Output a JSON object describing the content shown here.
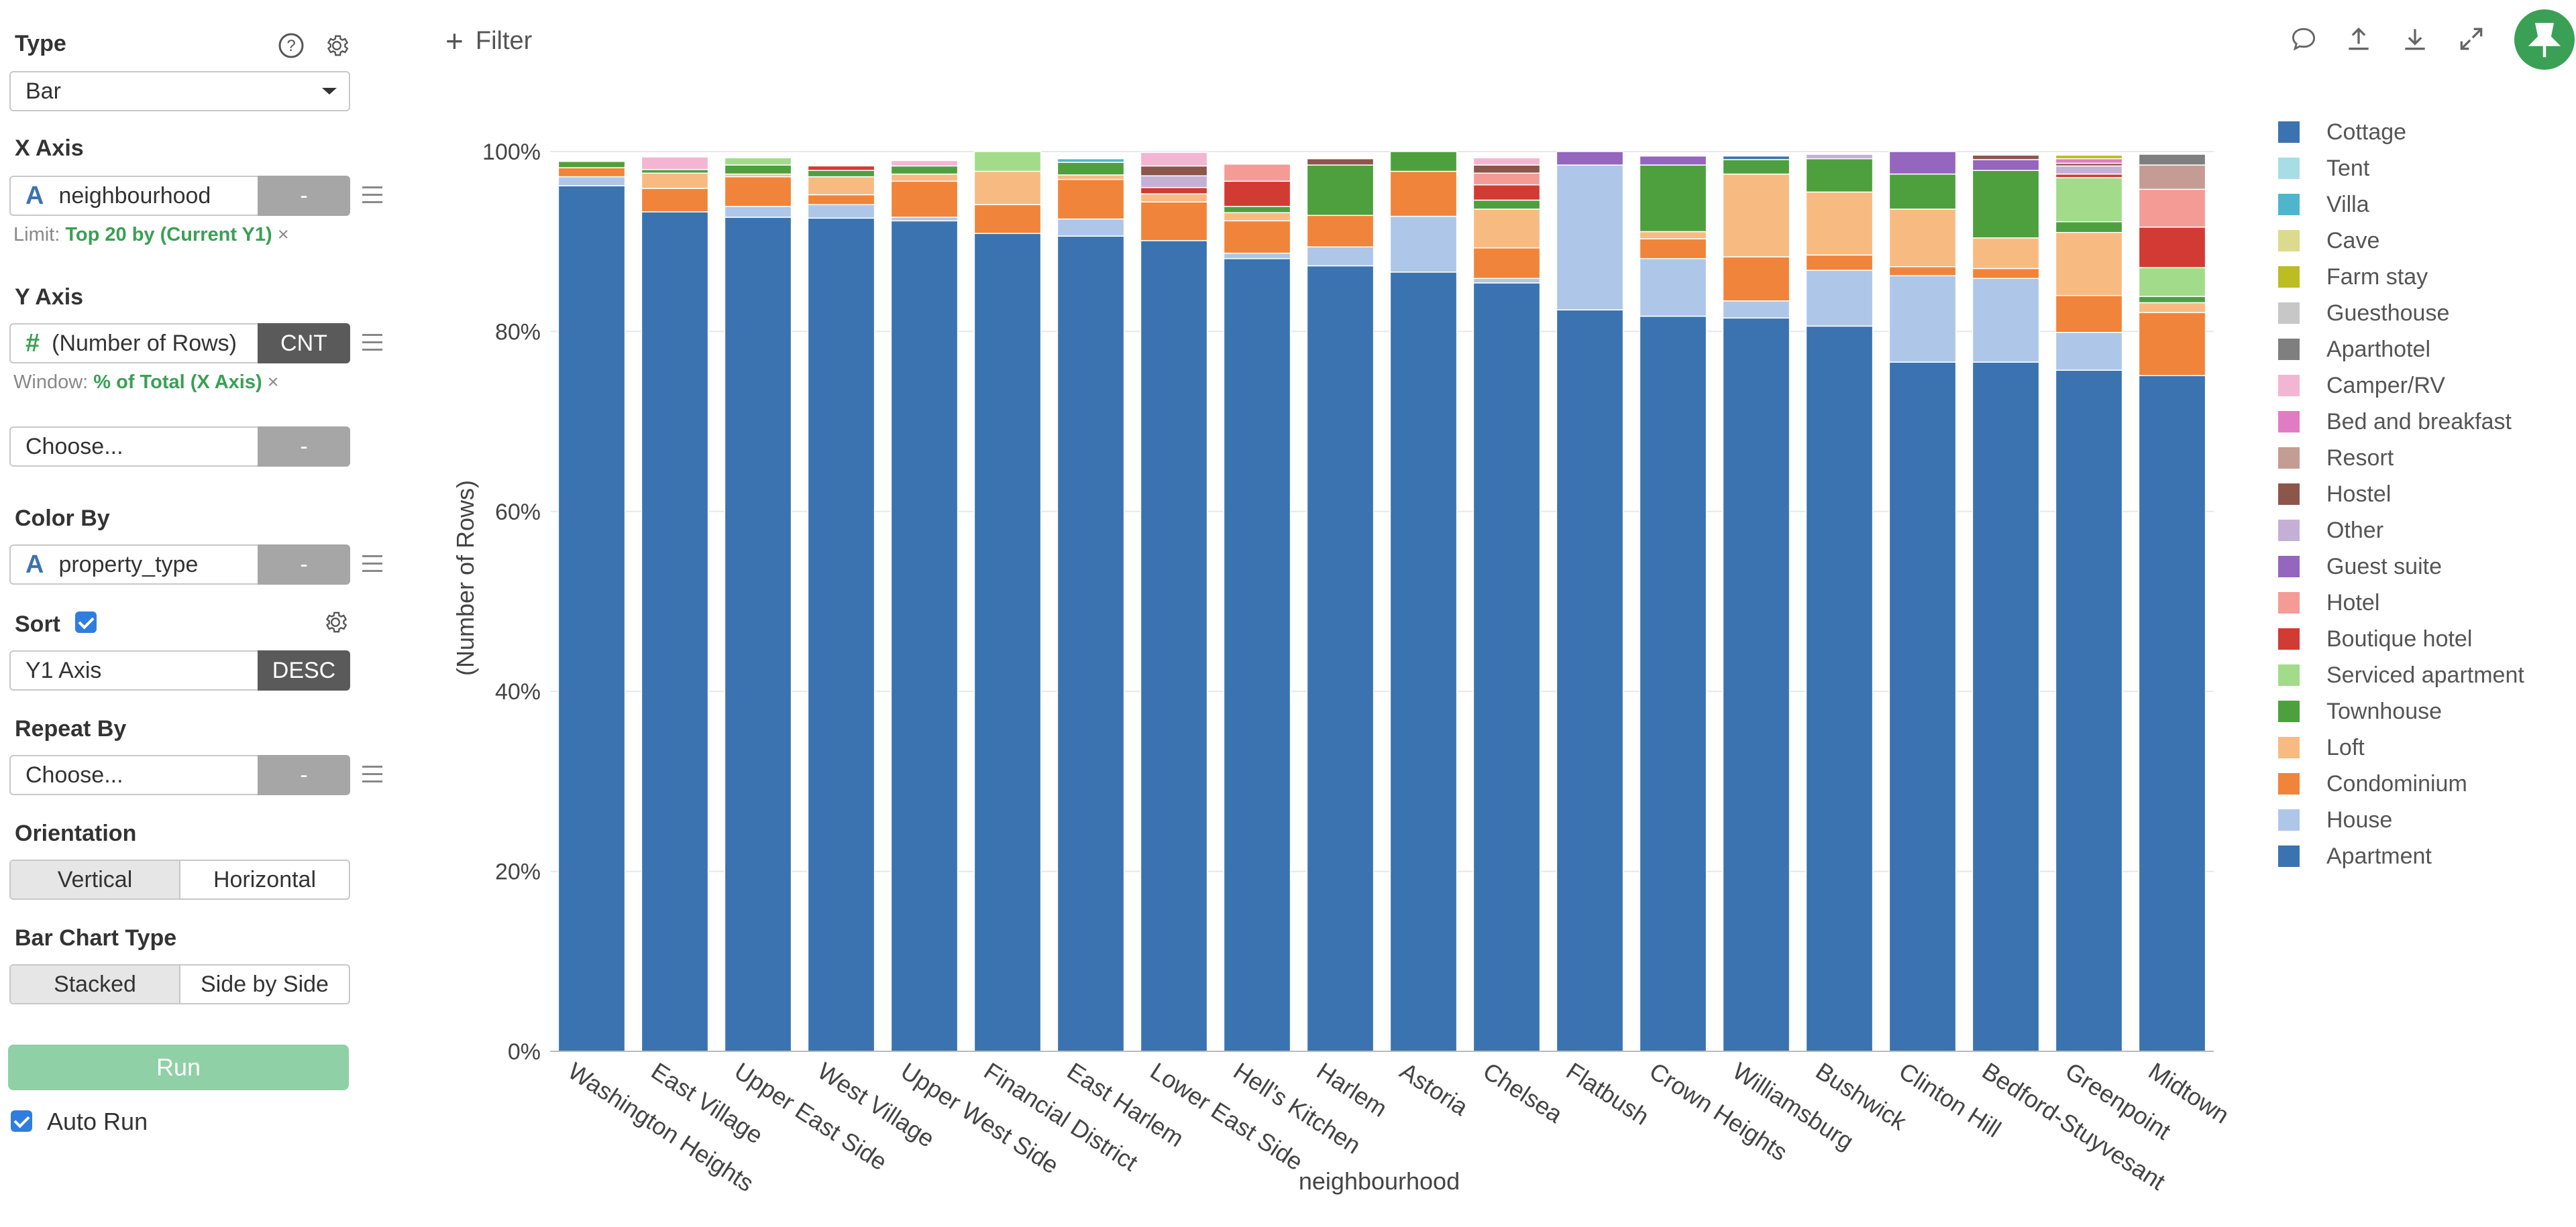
{
  "panel": {
    "type": {
      "title": "Type",
      "value": "Bar"
    },
    "x_axis": {
      "title": "X Axis",
      "field_type_icon": "A",
      "field": "neighbourhood",
      "agg": "-",
      "limit_label": "Limit:",
      "limit_value": "Top 20 by (Current Y1)",
      "remove": "×"
    },
    "y_axis": {
      "title": "Y Axis",
      "field_type_icon": "#",
      "field": "(Number of Rows)",
      "agg": "CNT",
      "window_label": "Window:",
      "window_value": "% of Total (X Axis)",
      "remove": "×"
    },
    "y2": {
      "placeholder": "Choose...",
      "agg": "-"
    },
    "color_by": {
      "title": "Color By",
      "field_type_icon": "A",
      "field": "property_type",
      "agg": "-"
    },
    "sort": {
      "title": "Sort",
      "field": "Y1 Axis",
      "order": "DESC"
    },
    "repeat_by": {
      "title": "Repeat By",
      "placeholder": "Choose...",
      "agg": "-"
    },
    "orientation": {
      "title": "Orientation",
      "options": [
        "Vertical",
        "Horizontal"
      ],
      "selected": "Vertical"
    },
    "bar_type": {
      "title": "Bar Chart Type",
      "options": [
        "Stacked",
        "Side by Side"
      ],
      "selected": "Stacked"
    },
    "run_label": "Run",
    "auto_run_label": "Auto Run"
  },
  "toolbar": {
    "filter_label": "Filter",
    "filter_plus": "+"
  },
  "colors": {
    "Apartment": "#3a73b0",
    "House": "#aec7e8",
    "Condominium": "#f0843a",
    "Loft": "#f7bb82",
    "Townhouse": "#4ea03e",
    "Serviced apartment": "#a2dc8a",
    "Boutique hotel": "#d13b33",
    "Hotel": "#f49b96",
    "Guest suite": "#9466bd",
    "Other": "#c5b0d5",
    "Hostel": "#8c564b",
    "Resort": "#c49c94",
    "Bed and breakfast": "#e17bc4",
    "Camper/RV": "#f2b6d2",
    "Aparthotel": "#7f7f7f",
    "Guesthouse": "#c7c7c7",
    "Farm stay": "#bcbd22",
    "Cave": "#dbdb8d",
    "Villa": "#4eb6cc",
    "Tent": "#a9dde6",
    "Cottage": "#3a73b0"
  },
  "chart_data": {
    "type": "bar",
    "stacked": true,
    "xlabel": "neighbourhood",
    "ylabel": "(Number of Rows)",
    "ylim": [
      0,
      100
    ],
    "yticks": [
      "0%",
      "20%",
      "40%",
      "60%",
      "80%",
      "100%"
    ],
    "legend_position": "right",
    "legend": [
      "Cottage",
      "Tent",
      "Villa",
      "Cave",
      "Farm stay",
      "Guesthouse",
      "Aparthotel",
      "Camper/RV",
      "Bed and breakfast",
      "Resort",
      "Hostel",
      "Other",
      "Guest suite",
      "Hotel",
      "Boutique hotel",
      "Serviced apartment",
      "Townhouse",
      "Loft",
      "Condominium",
      "House",
      "Apartment"
    ],
    "categories": [
      "Washington Heights",
      "East Village",
      "Upper East Side",
      "West Village",
      "Upper West Side",
      "Financial District",
      "East Harlem",
      "Lower East Side",
      "Hell's Kitchen",
      "Harlem",
      "Astoria",
      "Chelsea",
      "Flatbush",
      "Crown Heights",
      "Williamsburg",
      "Bushwick",
      "Clinton Hill",
      "Bedford-Stuyvesant",
      "Greenpoint",
      "Midtown"
    ],
    "series": [
      {
        "name": "Apartment",
        "values": [
          96.2,
          93.3,
          92.7,
          92.6,
          92.3,
          90.9,
          90.6,
          90.1,
          88.1,
          87.3,
          86.6,
          85.4,
          82.4,
          81.7,
          81.5,
          80.6,
          76.6,
          76.6,
          75.7,
          75.1
        ]
      },
      {
        "name": "House",
        "values": [
          1.0,
          0,
          1.2,
          1.5,
          0.4,
          0,
          1.9,
          0,
          0.6,
          2.1,
          6.2,
          0.5,
          16.1,
          6.4,
          1.9,
          6.2,
          9.6,
          9.3,
          4.2,
          0
        ]
      },
      {
        "name": "Condominium",
        "values": [
          1.0,
          2.6,
          3.3,
          1.1,
          4.0,
          3.2,
          4.4,
          4.3,
          3.6,
          3.5,
          5.0,
          3.4,
          0,
          2.2,
          4.9,
          1.7,
          1.0,
          1.1,
          4.1,
          7.0
        ]
      },
      {
        "name": "Loft",
        "values": [
          0,
          1.7,
          0.3,
          2.0,
          0.8,
          3.7,
          0.5,
          0.9,
          0.9,
          0,
          0,
          4.3,
          0,
          0.8,
          9.2,
          7.0,
          6.4,
          3.4,
          7.0,
          1.1
        ]
      },
      {
        "name": "Townhouse",
        "values": [
          0.7,
          0.4,
          1.0,
          0.7,
          0.9,
          0,
          1.4,
          0,
          0.7,
          5.6,
          2.2,
          1.0,
          0,
          7.4,
          1.6,
          3.7,
          3.9,
          7.5,
          1.2,
          0.7
        ]
      },
      {
        "name": "Serviced apartment",
        "values": [
          0,
          0,
          0.8,
          0,
          0,
          2.2,
          0,
          0,
          0,
          0,
          0,
          0,
          0,
          0,
          0,
          0,
          0,
          0,
          4.9,
          3.2
        ]
      },
      {
        "name": "Boutique hotel",
        "values": [
          0,
          0,
          0,
          0.5,
          0,
          0,
          0,
          0.7,
          2.8,
          0,
          0,
          1.7,
          0,
          0,
          0,
          0,
          0,
          0,
          0.4,
          4.5
        ]
      },
      {
        "name": "Hotel",
        "values": [
          0,
          0,
          0,
          0,
          0,
          0,
          0,
          0,
          1.9,
          0,
          0,
          1.3,
          0,
          0,
          0,
          0,
          0,
          0,
          0,
          4.2
        ]
      },
      {
        "name": "Guest suite",
        "values": [
          0,
          0,
          0,
          0,
          0,
          0,
          0,
          0,
          0,
          0,
          0,
          0,
          1.5,
          1.0,
          0,
          0,
          2.5,
          1.2,
          0,
          0
        ]
      },
      {
        "name": "Other",
        "values": [
          0,
          0,
          0,
          0,
          0,
          0,
          0,
          1.3,
          0,
          0,
          0,
          0,
          0,
          0,
          0,
          0.5,
          0,
          0,
          0.9,
          0
        ]
      },
      {
        "name": "Hostel",
        "values": [
          0,
          0,
          0,
          0,
          0,
          0,
          0,
          1.1,
          0,
          0.7,
          0,
          0.9,
          0,
          0,
          0,
          0,
          0,
          0.5,
          0.3,
          0
        ]
      },
      {
        "name": "Resort",
        "values": [
          0,
          0,
          0,
          0,
          0,
          0,
          0,
          0,
          0,
          0,
          0,
          0,
          0,
          0,
          0,
          0,
          0,
          0,
          0,
          2.7
        ]
      },
      {
        "name": "Bed and breakfast",
        "values": [
          0,
          0,
          0,
          0,
          0,
          0,
          0,
          0,
          0,
          0,
          0,
          0,
          0,
          0,
          0,
          0,
          0,
          0,
          0.5,
          0
        ]
      },
      {
        "name": "Camper/RV",
        "values": [
          0,
          1.4,
          0,
          0,
          0.6,
          0,
          0,
          1.5,
          0,
          0,
          0,
          0.8,
          0,
          0,
          0,
          0,
          0,
          0,
          0,
          0
        ]
      },
      {
        "name": "Aparthotel",
        "values": [
          0,
          0,
          0,
          0,
          0,
          0,
          0,
          0,
          0,
          0,
          0,
          0,
          0,
          0,
          0,
          0,
          0,
          0,
          0,
          1.2
        ]
      },
      {
        "name": "Guesthouse",
        "values": [
          0,
          0,
          0,
          0,
          0,
          0,
          0,
          0,
          0,
          0,
          0,
          0,
          0,
          0,
          0,
          0,
          0,
          0,
          0,
          0
        ]
      },
      {
        "name": "Farm stay",
        "values": [
          0,
          0,
          0,
          0,
          0,
          0,
          0,
          0,
          0,
          0,
          0,
          0,
          0,
          0,
          0,
          0,
          0,
          0,
          0.4,
          0
        ]
      },
      {
        "name": "Cave",
        "values": [
          0,
          0,
          0,
          0,
          0,
          0,
          0,
          0,
          0,
          0,
          0,
          0,
          0,
          0,
          0,
          0,
          0,
          0,
          0,
          0
        ]
      },
      {
        "name": "Villa",
        "values": [
          0,
          0,
          0,
          0,
          0,
          0,
          0.4,
          0,
          0,
          0,
          0,
          0,
          0,
          0,
          0,
          0,
          0,
          0,
          0,
          0
        ]
      },
      {
        "name": "Tent",
        "values": [
          0,
          0,
          0,
          0,
          0,
          0,
          0,
          0,
          0,
          0,
          0,
          0,
          0,
          0,
          0,
          0,
          0,
          0,
          0,
          0
        ]
      },
      {
        "name": "Cottage",
        "values": [
          0,
          0,
          0,
          0,
          0,
          0,
          0,
          0,
          0,
          0,
          0,
          0,
          0,
          0,
          0.4,
          0,
          0,
          0,
          0,
          0
        ]
      }
    ]
  }
}
